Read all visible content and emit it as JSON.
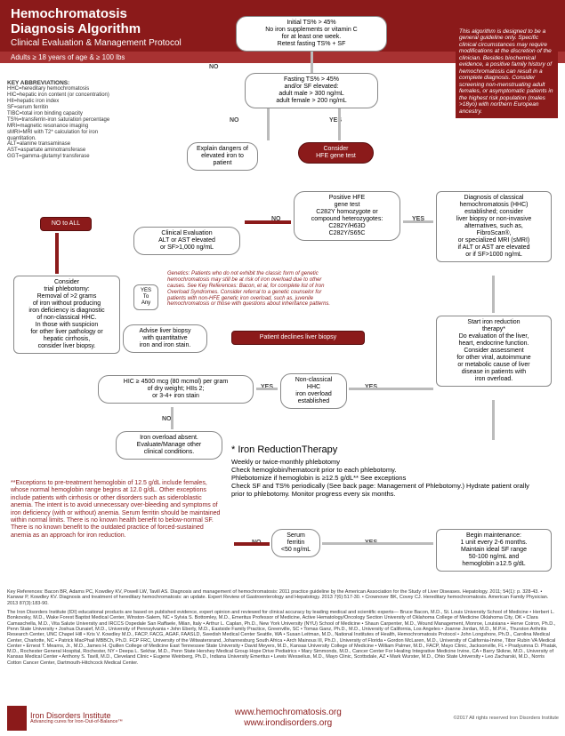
{
  "header": {
    "title1": "Hemochromatosis",
    "title2": "Diagnosis Algorithm",
    "subtitle": "Clinical Evaluation & Management Protocol"
  },
  "subheader": "Adults ≥ 18 years of age & ≥ 100 lbs",
  "colors": {
    "primary": "#8b1a1a",
    "arrow_gray": "#bbbbbb",
    "text": "#333333",
    "bg": "#ffffff"
  },
  "abbrev": {
    "title": "KEY ABBREVIATIONS:",
    "items": [
      "HHC=hereditary hemochromatosis",
      "HIC=hepatic iron content (or concentration)",
      "HII=hepatic iron index",
      "SF=serum ferritin",
      "TIBC=total iron binding capacity",
      "TS%=transferrin-iron saturation percentage",
      "MRI=magnetic resonance imaging",
      "sMRI=MRI with T2* calculation for iron quantitation.",
      "ALT=alanine transaminase",
      "AST=aspartate aminotransferase",
      "GGT=gamma-glutamyl transferase"
    ]
  },
  "guideline": "This algorithm is designed to be a general guideline only. Specific clinical circumstances may require modifications at the discretion of the clinician. Besides biochemical evidence, a positive family history of hemochromatosis can result in a complete diagnosis. Consider screening non-menstruating adult females, or asymptomatic patients in the highest risk population (males >18yo) with northern European ancestry.",
  "boxes": {
    "initial": "Initial TS% > 45%\nNo iron supplements or vitamin C\nfor at least one week.\nRetest fasting TS% + SF",
    "fasting": "Fasting TS% > 45%\nand/or SF elevated:\nadult male >   300 ng/mL\nadult female >   200 ng/mL",
    "explain": "Explain dangers of\nelevated iron to\npatient",
    "hfe": "Consider\nHFE gene test",
    "clineval": "Clinical Evaluation\nALT or AST elevated\nor SF>1,000 ng/mL",
    "hfepositive": "Positive HFE\ngene test\nC282Y homozygote or\ncompound heterozygotes:\nC282Y/H63D\nC282Y/S65C",
    "dxhhc": "Diagnosis of classical\nhemochromatosis (HHC)\nestablished; consider\nliver biopsy or non-invasive\nalternatives, such as,\nFibroScan®,\nor specialized MRI (sMRI)\nif ALT or AST are elevated\nor if SF>1000 ng/mL",
    "notoall": "NO to ALL",
    "trial": "Consider\ntrial phlebotomy:\nRemoval of >2 grams\nof iron without producing\niron deficiency is diagnostic\nof non-classical HHC.\nIn those with suspicion\nfor other liver pathology or\nhepatic cirrhosis,\nconsider liver biopsy.",
    "yesany": "YES\nTo\nAny",
    "biopsy": "Advise liver biopsy\nwith quantitative\niron and iron stain.",
    "declines": "Patient declines liver biopsy",
    "hic": "HIC ≥ 4500 mcg (80 mcmol) per gram\nof dry weight; HIIs 2;\nor 3-4+ iron stain",
    "nonclassical": "Non-classical\nHHC\niron overload\nestablished",
    "startirt": "Start iron reduction\ntherapy*\nDo evaluation of the liver,\nheart, endocrine function.\nConsider assessment\nfor other viral, autoimmune\nor metabolic cause of liver\ndisease in patients with\niron overload.",
    "absent": "Iron overload absent.\nEvaluate/Manage other\nclinical conditions.",
    "sf50": "Serum\nferritin\n<50 ng/mL",
    "maint": "Begin maintenance:\n1 unit every 2-6 months.\nMaintain ideal SF range\n50-100 ng/mL and\nhemoglobin ≥12.5 g/dL"
  },
  "labels": {
    "no": "NO",
    "yes": "YES"
  },
  "genetics": "Genetics: Patients who do not exhibit the classic form of genetic hemochromatosis may still be at risk of iron overload due to other causes. See Key References: Bacon, et al, for complete list of Iron Overload Syndromes. Consider referral to a genetic counselor for patients with non-HFE genetic iron overload, such as, juvenile hemochromatosis or those with questions about inheritance patterns.",
  "irt": {
    "title": "* Iron ReductionTherapy",
    "body": "Weekly or twice-monthly phlebotomy\nCheck hemoglobin/hematocrit prior to each phlebotomy.\nPhlebotomize if hemoglobin is ≥12.5 g/dL** See exceptions\nCheck SF and TS% periodically (See back page: Management of Phlebotomy.) Hydrate patient orally prior to phlebotomy. Monitor progress every six months."
  },
  "exceptions": "**Exceptions to pre-treatment hemoglobin of 12.5 g/dL include females, whose normal hemoglobin range begins at 12.0 g/dL. Other exceptions include patients with cirrhosis or other disorders such as sideroblastic anemia. The intent is to avoid unnecessary over-bleeding and symptoms of iron deficiency (with or without) anemia. Serum ferritin should be maintained within normal limits. There is no known health benefit to below-normal SF. There is no known benefit to the outdated practice of forced-sustained anemia as an approach for iron reduction.",
  "keyrefs": "Key References: Bacon BR, Adams PC, Kowdley KV, Powell LW, Tavill AS. Diagnosis and management of hemochromatosis: 2011 practice guideline by the American Association for the Study of Liver Diseases. Hepatology. 2011; 54(1): p. 328-43. • Kanwar P, Kowdley KV. Diagnosis and treatment of hereditary hemochromatosis: an update. Expert Review of Gastroenterology and Hepatology. 2013 7(6):517-30. • Crownover BK, Covey CJ. Hereditary hemochromatosis. American Family Physician. 2013 87(3):183-90.",
  "disclaimer": "The Iron Disorders Institute (IDI) educational products are based on published evidence, expert opinion and reviewed for clinical accuracy by leading medical and scientific experts— Bruce Bacon, M.D., St. Louis University School of Medicine • Herbert L. Bonkovsky, M.D., Wake Forest Baptist Medical Center, Winston-Salem, NC • Sylvia S. Bottomley, M.D., Emeritus Professor of Medicine, Active Hematology/Oncology Section University of Oklahoma College of Medicine Oklahoma City, OK • Clara Camaschella, M.D., Vita Salute University and IRCCS Ospedale San Raffaele, Milan, Italy • Arthur L. Caplan, Ph.D., New York University (NYU) School of Medicine • Shaun Carpenter, M.D., Wound Management, Monroe, Louisiana • Herve Coiron, Ph.D., Penn State University • Joshua Dunaief, M.D., University of Pennsylvania • John Eberly, M.D., Eastside Family Practice, Greenville, SC • Tomas Ganz, Ph.D., M.D., University of California, Los Angeles • Joanne Jordan, M.D., M.P.H., Thurston Arthritis Research Center, UNC Chapel Hill • Kris V. Kowdley M.D., FACP, FACG, AGAF, FAASLD, Swedish Medical Center Seattle, WA • Susan Leitman, M.D., National Institutes of Health, Hemochromatosis Protocol • John Longshore, Ph.D., Carolina Medical Center, Charlotte, NC • Patrick MacPhail MBBCh, Ph.D. FCP FRC, University of the Witwatersrand, Johannesburg South Africa • Arch Mainous III, Ph.D., University of Florida • Gordon McLaren, M.D., University of California-Irvine, Tibor Rubin VA Medical Center • Ernest T. Mearns, Jr., M.D., James H. Quillen College of Medicine East Tennessee State University • David Meyers, M.D., Kansas University College of Medicine • William Palmer, M.D., FACP, Mayo Clinic, Jacksonville, FL • Pradyumna D. Phatak, M.D., Rochester General Hospital, Rochester, NY • Deepa L. Sekhar, M.D., Penn State Hershey Medical Group Hope Drive Pediatrics • Mary Simmonds, M.D., Cancer Center For Healing Integrative Medicine Irvine, CA • Barry Skikne, M.D., University of Kansas Medical Center • Anthony S. Tavill, M.D., Cleveland Clinic • Eugene Weinberg, Ph.D., Indiana University Emeritus • Lewis Wesselius, M.D., Mayo Clinic, Scottsdale, AZ • Mark Wurster, M.D., Ohio State University • Leo Zacharski, M.D., Norris Cotton Cancer Center, Dartmouth-Hitchcock Medical Center.",
  "footer": {
    "org": "Iron Disorders Institute",
    "tag": "Advancing cures for Iron-Out-of-Balance™",
    "link1": "www.hemochromatosis.org",
    "link2": "www.irondisorders.org",
    "copy": "©2017 All rights reserved Iron Disorders Institute"
  }
}
